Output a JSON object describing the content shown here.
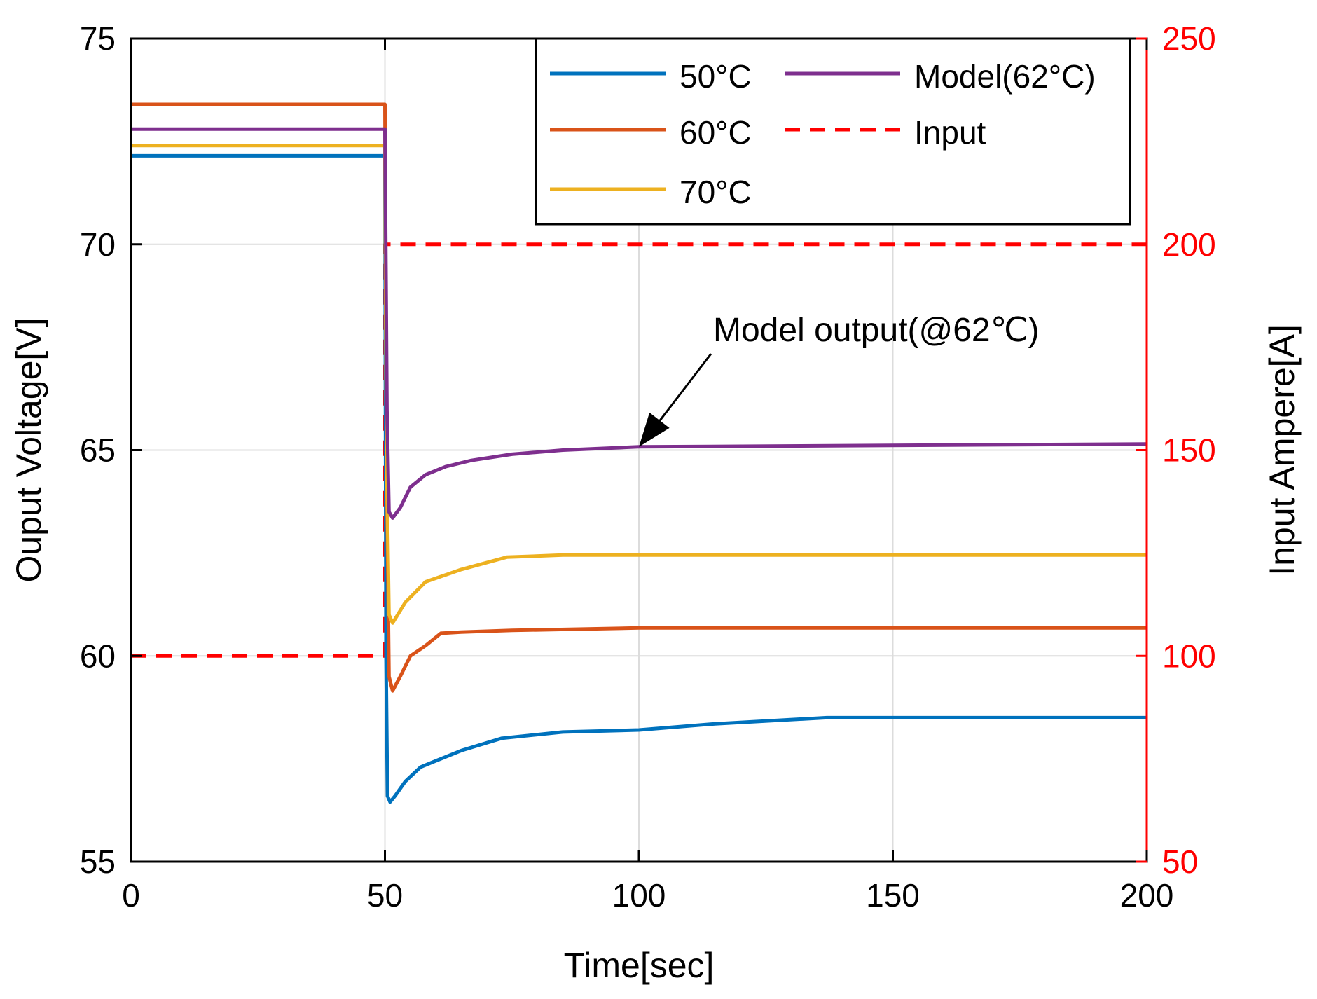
{
  "chart_data": {
    "type": "line",
    "xlabel": "Time[sec]",
    "ylabel_left": "Ouput Voltage[V]",
    "ylabel_right": "Input Ampere[A]",
    "xlim": [
      0,
      200
    ],
    "ylim_left": [
      55,
      75
    ],
    "ylim_right": [
      50,
      250
    ],
    "xticks": [
      "0",
      "50",
      "100",
      "150",
      "200"
    ],
    "xtick_values": [
      0,
      50,
      100,
      150,
      200
    ],
    "yticks_left": [
      "55",
      "60",
      "65",
      "70",
      "75"
    ],
    "ytick_left_values": [
      55,
      60,
      65,
      70,
      75
    ],
    "yticks_right": [
      "50",
      "100",
      "150",
      "200",
      "250"
    ],
    "ytick_right_values": [
      50,
      100,
      150,
      200,
      250
    ],
    "grid": true,
    "right_axis_color": "#ff0000",
    "legend_position": "top-right",
    "series": [
      {
        "name": "50°C",
        "axis": "left",
        "color": "#0072BD",
        "dash": "solid",
        "x": [
          0,
          50,
          50.2,
          50.5,
          51,
          52,
          54,
          57,
          60,
          65,
          73,
          85,
          100,
          115,
          137,
          200
        ],
        "y": [
          72.15,
          72.15,
          60.0,
          56.6,
          56.45,
          56.6,
          56.95,
          57.3,
          57.45,
          57.7,
          58.0,
          58.15,
          58.2,
          58.35,
          58.5,
          58.5
        ]
      },
      {
        "name": "60°C",
        "axis": "left",
        "color": "#D95319",
        "dash": "solid",
        "x": [
          0,
          50,
          50.3,
          50.8,
          51.5,
          53,
          55,
          58,
          61,
          65,
          75,
          100,
          200
        ],
        "y": [
          73.4,
          73.4,
          65.0,
          59.5,
          59.15,
          59.5,
          60.0,
          60.25,
          60.55,
          60.58,
          60.62,
          60.68,
          60.68
        ]
      },
      {
        "name": "70°C",
        "axis": "left",
        "color": "#EDB120",
        "dash": "solid",
        "x": [
          0,
          50,
          50.3,
          50.8,
          51.5,
          54,
          58,
          65,
          74,
          85,
          200
        ],
        "y": [
          72.4,
          72.4,
          65.0,
          61.0,
          60.8,
          61.3,
          61.8,
          62.1,
          62.4,
          62.45,
          62.45
        ]
      },
      {
        "name": "Model(62°C)",
        "axis": "left",
        "color": "#7E2F8E",
        "dash": "solid",
        "x": [
          0,
          50,
          50.4,
          50.8,
          51.5,
          53,
          55,
          58,
          62,
          67,
          75,
          85,
          100,
          200
        ],
        "y": [
          72.8,
          72.8,
          66.0,
          63.5,
          63.35,
          63.6,
          64.1,
          64.4,
          64.6,
          64.75,
          64.9,
          65.0,
          65.08,
          65.15
        ]
      },
      {
        "name": "Input",
        "axis": "right",
        "color": "#ff0000",
        "dash": "dashed",
        "x": [
          0,
          50,
          50,
          200
        ],
        "y": [
          100,
          100,
          200,
          200
        ]
      }
    ],
    "annotations": [
      {
        "text": "Model output(@62℃)",
        "arrow_to": [
          100,
          65.08
        ]
      }
    ]
  }
}
